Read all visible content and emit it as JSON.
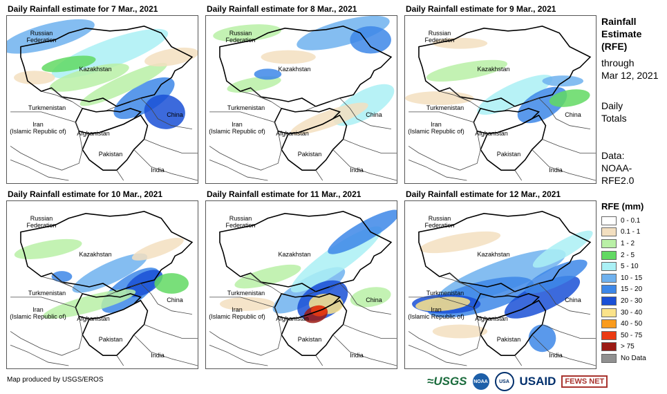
{
  "panels": [
    {
      "title": "Daily Rainfall estimate for 7 Mar., 2021"
    },
    {
      "title": "Daily Rainfall estimate for 8 Mar., 2021"
    },
    {
      "title": "Daily Rainfall estimate for 9 Mar., 2021"
    },
    {
      "title": "Daily Rainfall estimate for 10 Mar., 2021"
    },
    {
      "title": "Daily Rainfall estimate for 11 Mar., 2021"
    },
    {
      "title": "Daily Rainfall estimate for 12 Mar., 2021"
    }
  ],
  "map_labels": {
    "russia": "Russian\nFederation",
    "kazakhstan": "Kazakhstan",
    "turkmenistan": "Turkmenistan",
    "china": "China",
    "iran": "Iran\n(Islamic Republic of)",
    "afghanistan": "Afghanistan",
    "pakistan": "Pakistan",
    "india": "India"
  },
  "side_info": {
    "line1": "Rainfall",
    "line2": "Estimate",
    "line3": "(RFE)",
    "line4": "through",
    "line5": "Mar 12, 2021",
    "line6": "Daily",
    "line7": "Totals",
    "line8": "Data:",
    "line9": "NOAA-",
    "line10": "RFE2.0"
  },
  "legend": {
    "title": "RFE (mm)",
    "items": [
      {
        "label": "0 - 0.1",
        "color": "#ffffff"
      },
      {
        "label": "0.1 - 1",
        "color": "#f3dfc0"
      },
      {
        "label": "1 - 2",
        "color": "#b9f0a6"
      },
      {
        "label": "2 - 5",
        "color": "#62d963"
      },
      {
        "label": "5 - 10",
        "color": "#aaf0f5"
      },
      {
        "label": "10 - 15",
        "color": "#6fb1ee"
      },
      {
        "label": "15 - 20",
        "color": "#3d87e8"
      },
      {
        "label": "20 - 30",
        "color": "#1a50d6"
      },
      {
        "label": "30 - 40",
        "color": "#fbe38a"
      },
      {
        "label": "40 - 50",
        "color": "#fa9b1d"
      },
      {
        "label": "50 - 75",
        "color": "#eb3a12"
      },
      {
        "label": "> 75",
        "color": "#9b1a14"
      },
      {
        "label": "No Data",
        "color": "#909090"
      }
    ]
  },
  "footer": "Map produced by USGS/EROS",
  "logos": {
    "usgs": "≈USGS",
    "noaa": "NOAA",
    "usa": "USA",
    "usaid": "USAID",
    "fews": "FEWS NET"
  }
}
